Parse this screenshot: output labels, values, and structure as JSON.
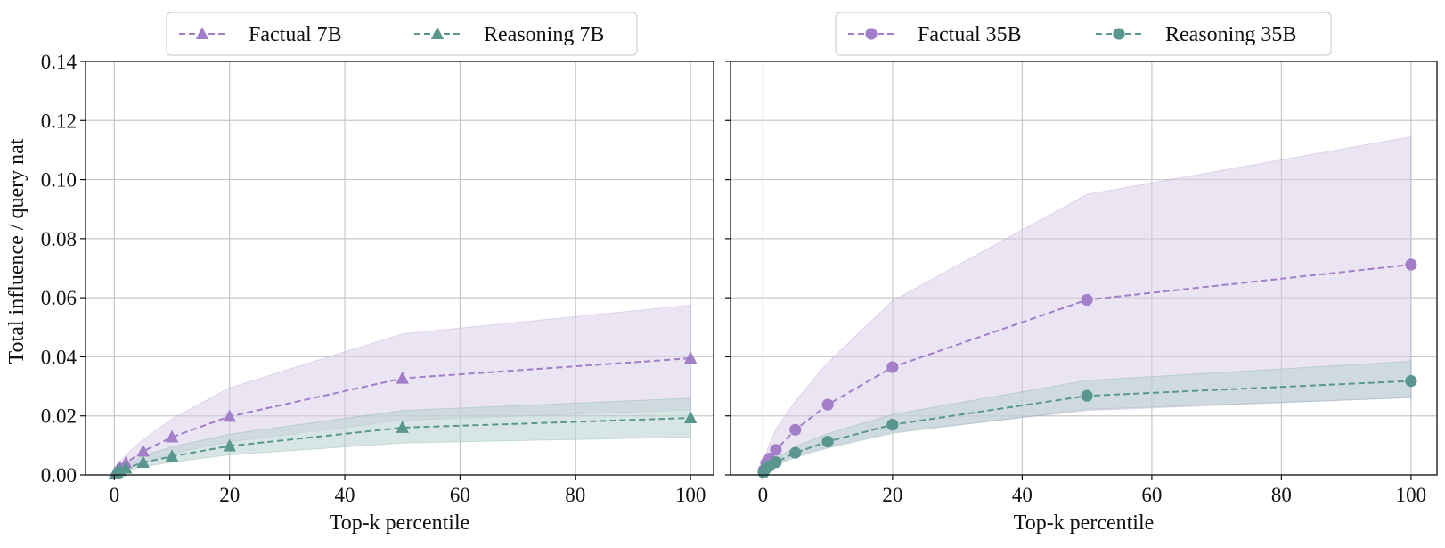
{
  "ylabel": "Total influence / query nat",
  "chart_data": [
    {
      "type": "line",
      "xlabel": "Top-k percentile",
      "ylabel": "Total influence / query nat",
      "xlim": [
        -5,
        104
      ],
      "ylim": [
        0,
        0.14
      ],
      "xticks": [
        0,
        20,
        40,
        60,
        80,
        100
      ],
      "yticks": [
        0.0,
        0.02,
        0.04,
        0.06,
        0.08,
        0.1,
        0.12,
        0.14
      ],
      "ytick_labels": [
        "0.00",
        "0.02",
        "0.04",
        "0.06",
        "0.08",
        "0.10",
        "0.12",
        "0.14"
      ],
      "show_yticks": true,
      "grid": true,
      "legend_position": "top-center",
      "series": [
        {
          "name": "Factual 7B",
          "color": "#a27fc8",
          "fill": "#d9cde9",
          "marker": "triangle",
          "x": [
            0.1,
            0.5,
            1,
            2,
            5,
            10,
            20,
            50,
            100
          ],
          "values": [
            0.0005,
            0.0015,
            0.0025,
            0.004,
            0.008,
            0.0128,
            0.0198,
            0.0327,
            0.0395
          ],
          "lower": [
            0.0002,
            0.0007,
            0.0012,
            0.002,
            0.0042,
            0.0072,
            0.0112,
            0.0185,
            0.022
          ],
          "upper": [
            0.0012,
            0.003,
            0.0045,
            0.0068,
            0.012,
            0.019,
            0.0295,
            0.0478,
            0.0575
          ]
        },
        {
          "name": "Reasoning 7B",
          "color": "#5a9690",
          "fill": "#b6d2cf",
          "marker": "triangle",
          "x": [
            0.1,
            0.5,
            1,
            2,
            5,
            10,
            20,
            50,
            100
          ],
          "values": [
            0.0003,
            0.0009,
            0.0014,
            0.0022,
            0.0042,
            0.0063,
            0.0098,
            0.016,
            0.0193
          ],
          "lower": [
            0.0001,
            0.0005,
            0.0009,
            0.0014,
            0.0028,
            0.0043,
            0.0068,
            0.0108,
            0.0128
          ],
          "upper": [
            0.0006,
            0.0015,
            0.0022,
            0.0034,
            0.0065,
            0.0095,
            0.0138,
            0.0218,
            0.026
          ]
        }
      ]
    },
    {
      "type": "line",
      "xlabel": "Top-k percentile",
      "ylabel": "",
      "xlim": [
        -5,
        104
      ],
      "ylim": [
        0,
        0.14
      ],
      "xticks": [
        0,
        20,
        40,
        60,
        80,
        100
      ],
      "yticks": [
        0.0,
        0.02,
        0.04,
        0.06,
        0.08,
        0.1,
        0.12,
        0.14
      ],
      "ytick_labels": [],
      "show_yticks": false,
      "grid": true,
      "legend_position": "top-center",
      "series": [
        {
          "name": "Factual 35B",
          "color": "#a27fc8",
          "fill": "#d9cde9",
          "marker": "circle",
          "x": [
            0.1,
            0.5,
            1,
            2,
            5,
            10,
            20,
            50,
            100
          ],
          "values": [
            0.0015,
            0.004,
            0.0055,
            0.0085,
            0.0153,
            0.0238,
            0.0365,
            0.0593,
            0.0712
          ],
          "lower": [
            0.0006,
            0.0015,
            0.0022,
            0.0035,
            0.0065,
            0.0095,
            0.0145,
            0.0218,
            0.0262
          ],
          "upper": [
            0.003,
            0.0075,
            0.0105,
            0.0155,
            0.025,
            0.038,
            0.059,
            0.095,
            0.1145
          ]
        },
        {
          "name": "Reasoning 35B",
          "color": "#5a9690",
          "fill": "#b6d2cf",
          "marker": "circle",
          "x": [
            0.1,
            0.5,
            1,
            2,
            5,
            10,
            20,
            50,
            100
          ],
          "values": [
            0.0008,
            0.0022,
            0.003,
            0.0043,
            0.0075,
            0.0113,
            0.017,
            0.0268,
            0.0318
          ],
          "lower": [
            0.0005,
            0.0016,
            0.0022,
            0.0033,
            0.0059,
            0.0091,
            0.0141,
            0.0222,
            0.0262
          ],
          "upper": [
            0.0012,
            0.0031,
            0.004,
            0.0056,
            0.0095,
            0.014,
            0.0205,
            0.032,
            0.0385
          ]
        }
      ]
    }
  ]
}
